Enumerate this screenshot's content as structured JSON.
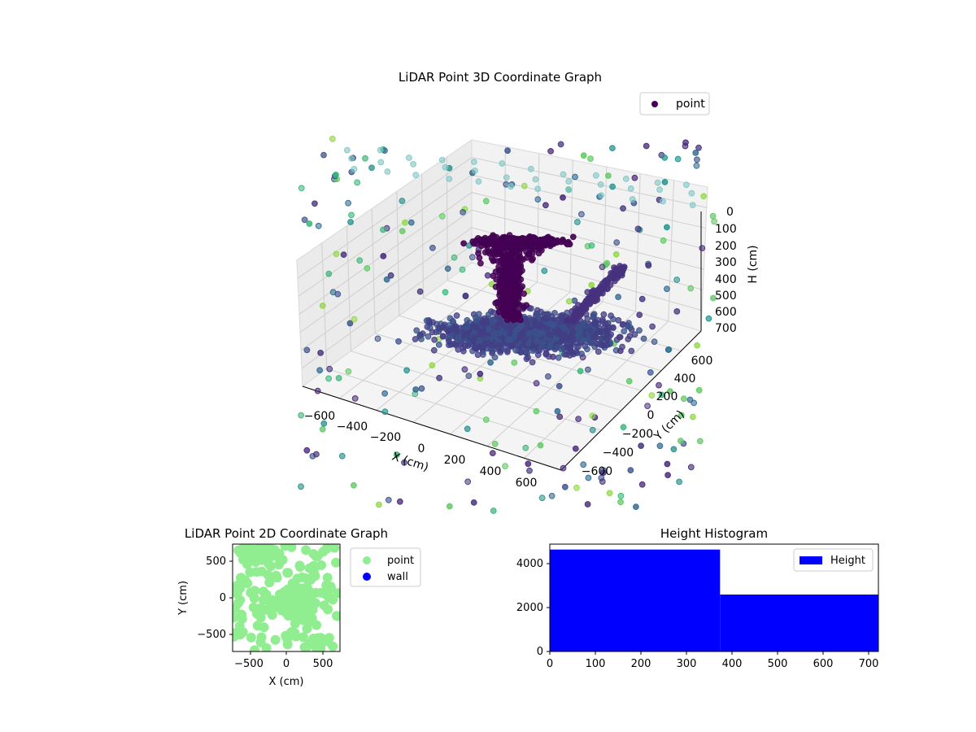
{
  "figure": {
    "panel_3d": {
      "title": "LiDAR Point 3D Coordinate Graph",
      "legend": [
        "point"
      ],
      "x_label": "X (cm)",
      "y_label": "Y (cm)",
      "z_label": "H (cm)",
      "x_ticks": [
        "−600",
        "−400",
        "−200",
        "0",
        "200",
        "400",
        "600"
      ],
      "y_ticks": [
        "−600",
        "−400",
        "−200",
        "0",
        "200",
        "400",
        "600"
      ],
      "z_ticks": [
        "0",
        "100",
        "200",
        "300",
        "400",
        "500",
        "600",
        "700"
      ]
    },
    "panel_2d": {
      "title": "LiDAR Point 2D Coordinate Graph",
      "legend": [
        "point",
        "wall"
      ],
      "x_label": "X (cm)",
      "y_label": "Y (cm)",
      "x_ticks": [
        "−500",
        "0",
        "500"
      ],
      "y_ticks": [
        "500",
        "0",
        "−500"
      ]
    },
    "panel_hist": {
      "title": "Height Histogram",
      "legend": [
        "Height"
      ],
      "x_ticks": [
        "0",
        "100",
        "200",
        "300",
        "400",
        "500",
        "600",
        "700"
      ],
      "y_ticks": [
        "0",
        "2000",
        "4000"
      ]
    }
  },
  "colors": {
    "point": "#90ee90",
    "wall": "#0000ff",
    "height": "#0000ff",
    "scatter3d_main": "#440154"
  },
  "chart_data": [
    {
      "type": "scatter",
      "title": "LiDAR Point 3D Coordinate Graph",
      "xlabel": "X (cm)",
      "ylabel": "Y (cm)",
      "zlabel": "H (cm)",
      "xlim": [
        -700,
        700
      ],
      "ylim": [
        -700,
        700
      ],
      "zlim": [
        700,
        0
      ],
      "series": [
        {
          "name": "point"
        }
      ],
      "grid": true,
      "legend_position": "top-right"
    },
    {
      "type": "scatter",
      "title": "LiDAR Point 2D Coordinate Graph",
      "xlabel": "X (cm)",
      "ylabel": "Y (cm)",
      "xlim": [
        -720,
        720
      ],
      "ylim": [
        -720,
        720
      ],
      "series": [
        {
          "name": "point"
        },
        {
          "name": "wall"
        }
      ],
      "legend_position": "outside-right"
    },
    {
      "type": "bar",
      "title": "Height Histogram",
      "bins": [
        [
          0,
          373
        ],
        [
          373,
          720
        ]
      ],
      "values": [
        4650,
        2600
      ],
      "xlim": [
        0,
        720
      ],
      "ylim": [
        0,
        4900
      ],
      "series": [
        {
          "name": "Height"
        }
      ],
      "legend_position": "top-right"
    }
  ]
}
